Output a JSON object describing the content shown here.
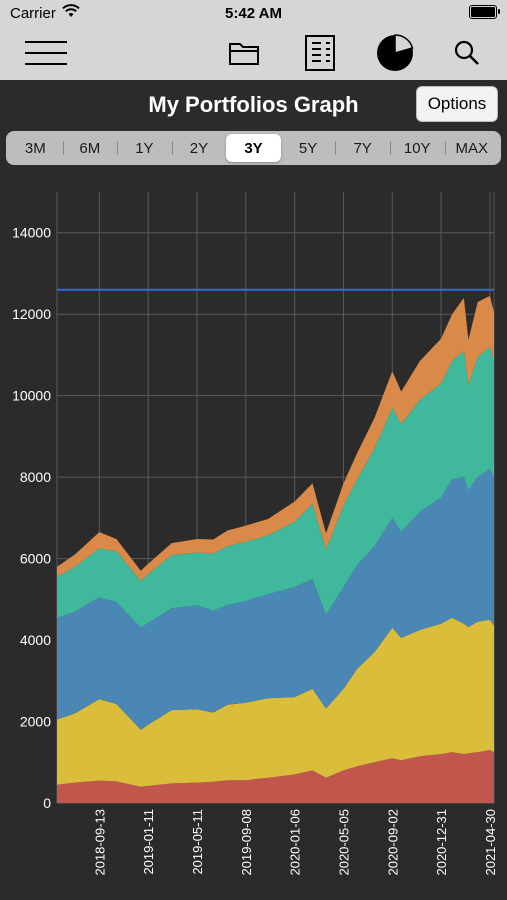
{
  "status_bar": {
    "carrier": "Carrier",
    "time": "5:42 AM",
    "battery_level": 1.0
  },
  "toolbar": {
    "icons": [
      "menu-icon",
      "folder-icon",
      "report-icon",
      "pie-chart-icon",
      "search-icon"
    ]
  },
  "header": {
    "title": "My Portfolios Graph",
    "options_label": "Options"
  },
  "range_tabs": {
    "items": [
      "3M",
      "6M",
      "1Y",
      "2Y",
      "3Y",
      "5Y",
      "7Y",
      "10Y",
      "MAX"
    ],
    "selected": "3Y"
  },
  "colors": {
    "background": "#2b2b2b",
    "series_red": "#c0564c",
    "series_yellow": "#dbbd3c",
    "series_blue": "#4a87b4",
    "series_green": "#3fb89c",
    "series_orange": "#d98a48",
    "reference_line": "#3369e0"
  },
  "chart_data": {
    "type": "area",
    "stacked": true,
    "x": [
      "2018-06-01",
      "2018-07-15",
      "2018-09-13",
      "2018-10-25",
      "2018-12-24",
      "2019-01-11",
      "2019-03-10",
      "2019-05-11",
      "2019-06-20",
      "2019-07-25",
      "2019-09-08",
      "2019-11-01",
      "2020-01-06",
      "2020-02-19",
      "2020-03-23",
      "2020-05-05",
      "2020-06-08",
      "2020-07-20",
      "2020-09-02",
      "2020-09-24",
      "2020-11-09",
      "2020-12-31",
      "2021-01-27",
      "2021-02-25",
      "2021-03-08",
      "2021-03-31",
      "2021-04-30",
      "2021-05-10"
    ],
    "series": [
      {
        "values": [
          450,
          500,
          550,
          530,
          400,
          420,
          480,
          500,
          520,
          560,
          560,
          620,
          700,
          800,
          620,
          800,
          900,
          1000,
          1100,
          1050,
          1150,
          1200,
          1250,
          1200,
          1220,
          1250,
          1300,
          1250
        ]
      },
      {
        "values": [
          1600,
          1700,
          2000,
          1900,
          1400,
          1500,
          1800,
          1800,
          1700,
          1850,
          1900,
          1950,
          1900,
          2000,
          1700,
          2000,
          2400,
          2700,
          3200,
          3000,
          3100,
          3200,
          3300,
          3200,
          3100,
          3200,
          3200,
          3100
        ]
      },
      {
        "values": [
          2500,
          2500,
          2500,
          2500,
          2500,
          2500,
          2500,
          2550,
          2500,
          2450,
          2500,
          2550,
          2700,
          2700,
          2300,
          2500,
          2550,
          2600,
          2700,
          2600,
          2900,
          3100,
          3400,
          3600,
          3350,
          3550,
          3700,
          3650
        ]
      },
      {
        "values": [
          1000,
          1100,
          1200,
          1250,
          1150,
          1200,
          1300,
          1300,
          1400,
          1450,
          1450,
          1450,
          1600,
          1850,
          1600,
          2000,
          2100,
          2400,
          2700,
          2650,
          2750,
          2800,
          2900,
          3100,
          2600,
          2950,
          3000,
          2850
        ]
      },
      {
        "values": [
          250,
          300,
          400,
          300,
          250,
          250,
          300,
          330,
          350,
          380,
          400,
          400,
          500,
          500,
          400,
          550,
          650,
          750,
          900,
          800,
          950,
          1100,
          1150,
          1300,
          1100,
          1350,
          1250,
          1200
        ]
      }
    ],
    "reference_line": 12600,
    "ylim": [
      0,
      15000
    ],
    "y_ticks": [
      0,
      2000,
      4000,
      6000,
      8000,
      10000,
      12000,
      14000
    ],
    "x_tick_labels": [
      "2018-09-13",
      "2019-01-11",
      "2019-05-11",
      "2019-09-08",
      "2020-01-06",
      "2020-05-05",
      "2020-09-02",
      "2020-12-31",
      "2021-04-30"
    ],
    "grid": true
  }
}
